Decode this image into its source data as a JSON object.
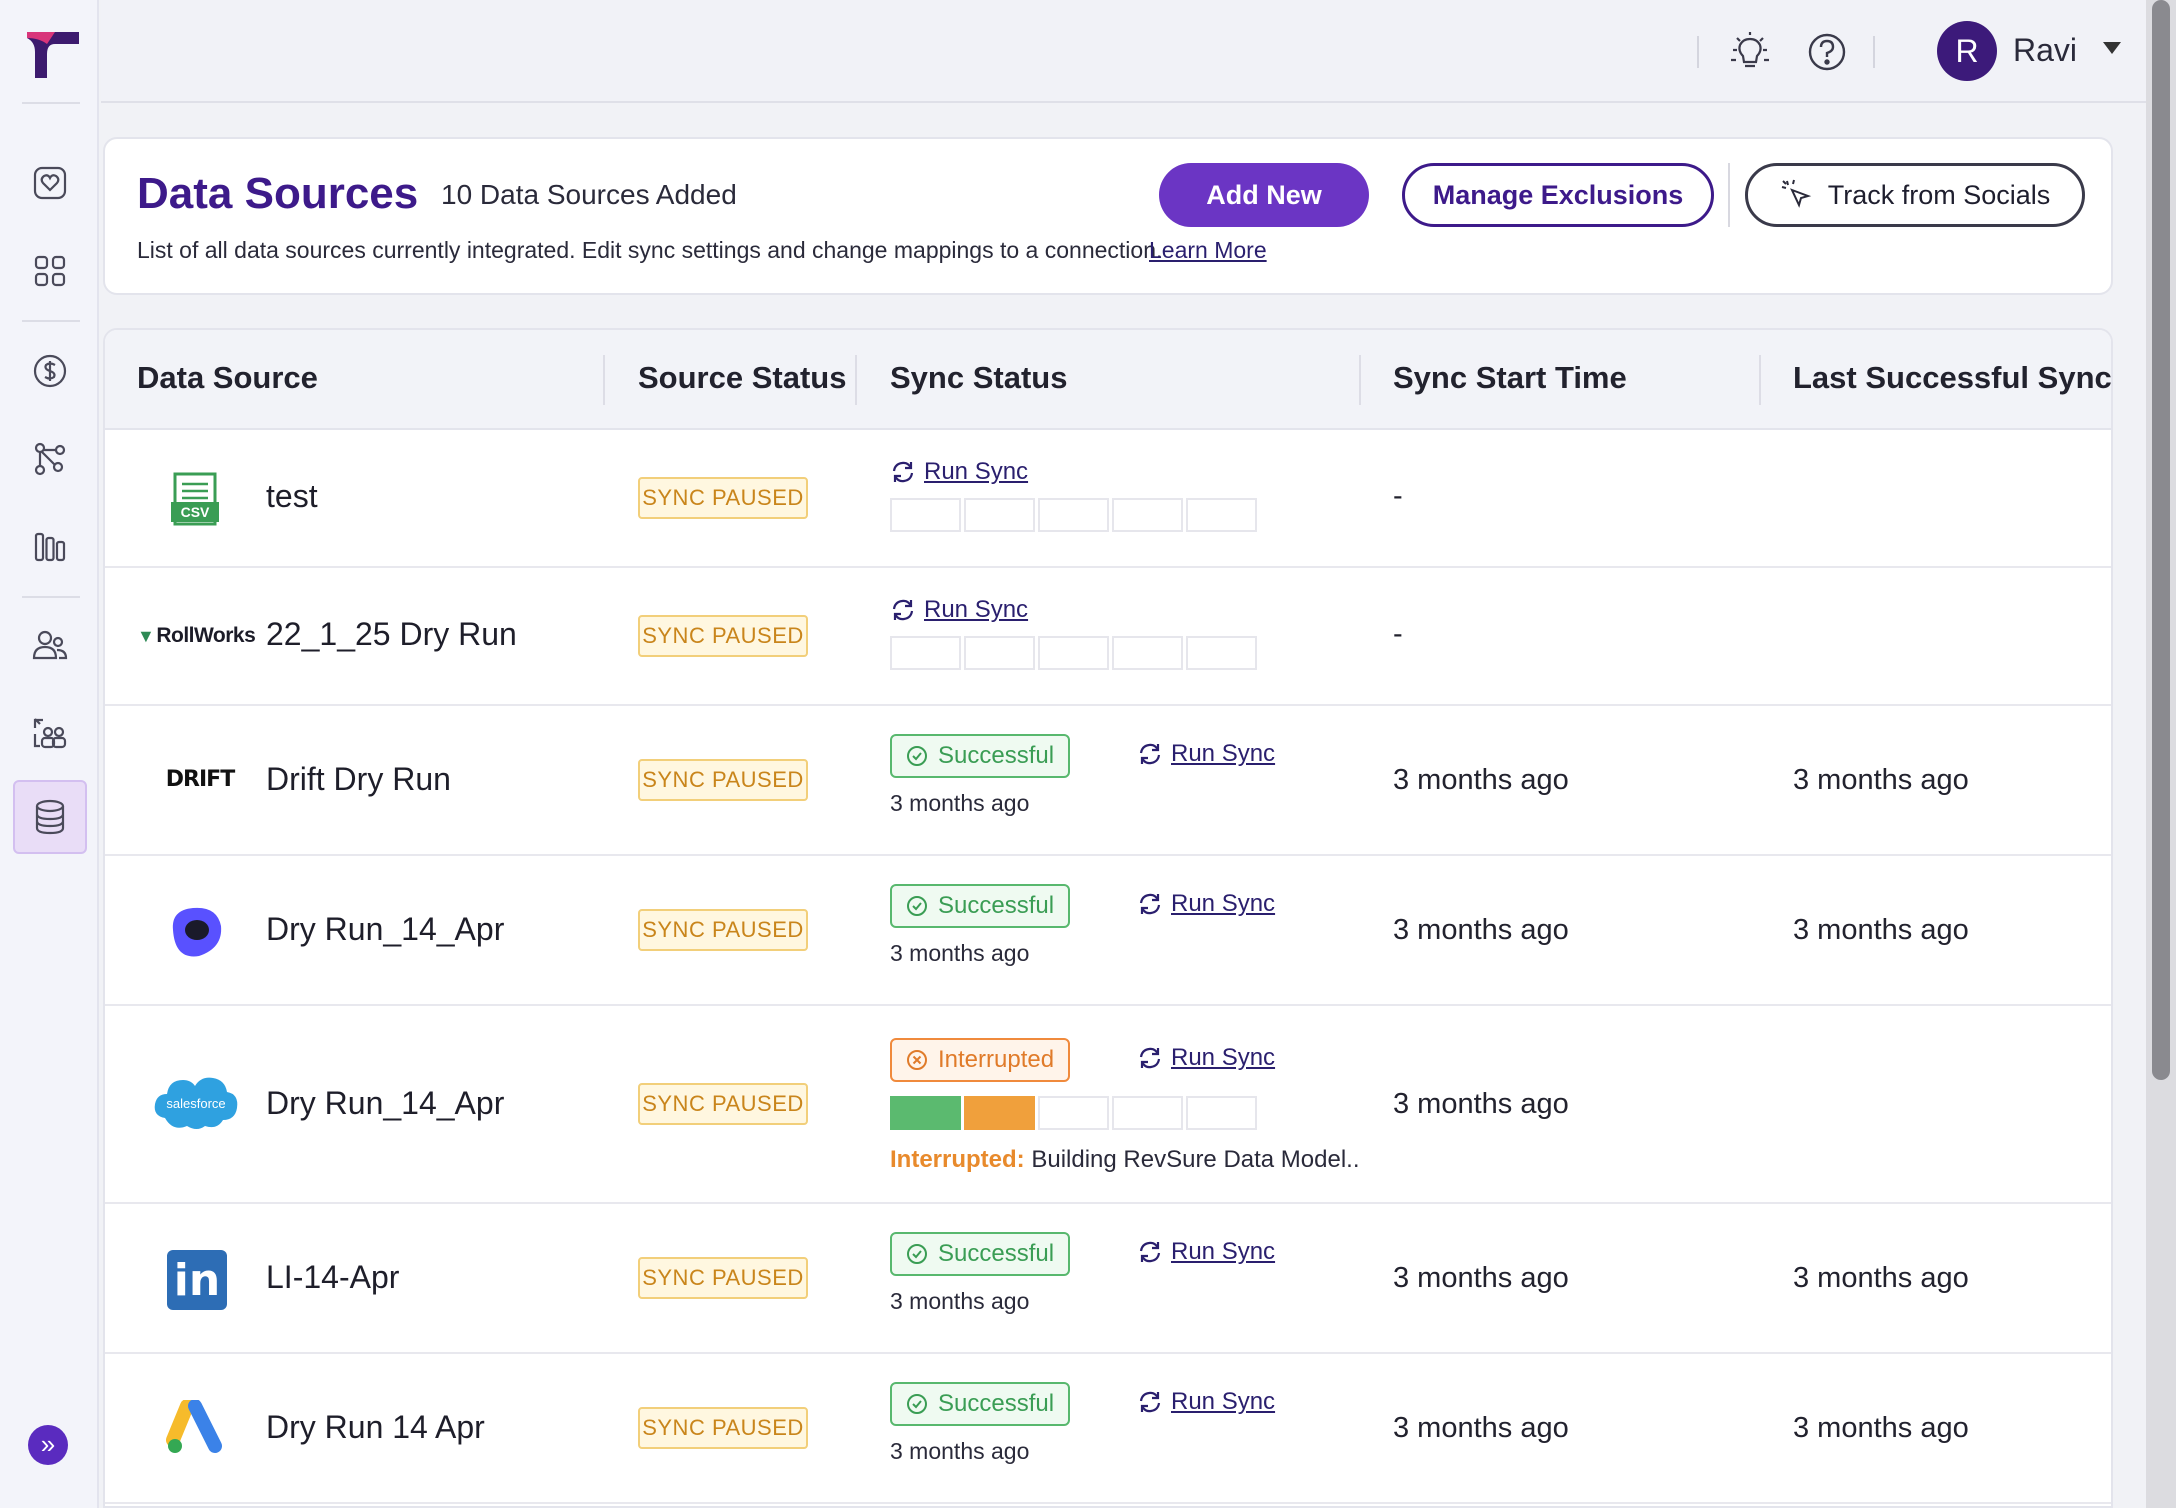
{
  "sidebar": {
    "items": [
      {
        "name": "heart-icon"
      },
      {
        "name": "grid-icon"
      },
      {
        "name": "dollar-icon"
      },
      {
        "name": "flow-icon"
      },
      {
        "name": "bars-icon"
      },
      {
        "name": "users-icon"
      },
      {
        "name": "people-upload-icon"
      },
      {
        "name": "database-icon",
        "active": true
      }
    ],
    "expand_label": "»"
  },
  "topbar": {
    "user_initial": "R",
    "user_name": "Ravi"
  },
  "header": {
    "title": "Data Sources",
    "count": "10 Data Sources Added",
    "description": "List of all data sources currently integrated. Edit sync settings and change mappings to a connection.",
    "learn_more": "Learn More",
    "add_new": "Add New",
    "manage_exclusions": "Manage Exclusions",
    "track_socials": "Track from Socials"
  },
  "table": {
    "columns": [
      "Data Source",
      "Source Status",
      "Sync Status",
      "Sync Start Time",
      "Last Successful Sync Sta"
    ],
    "run_sync_label": "Run Sync",
    "rows": [
      {
        "logo": "csv",
        "name": "test",
        "source_status": "SYNC PAUSED",
        "sync_status": "none",
        "sync_start": "-",
        "last_success": ""
      },
      {
        "logo": "rollworks",
        "logo_text": "RollWorks",
        "name": "22_1_25 Dry Run",
        "source_status": "SYNC PAUSED",
        "sync_status": "none",
        "sync_start": "-",
        "last_success": ""
      },
      {
        "logo": "drift",
        "logo_text": "DRIFT",
        "name": "Drift Dry Run",
        "source_status": "SYNC PAUSED",
        "sync_status": "Successful",
        "sync_time": "3 months ago",
        "sync_start": "3 months ago",
        "last_success": "3 months ago"
      },
      {
        "logo": "outreach",
        "name": "Dry Run_14_Apr",
        "source_status": "SYNC PAUSED",
        "sync_status": "Successful",
        "sync_time": "3 months ago",
        "sync_start": "3 months ago",
        "last_success": "3 months ago"
      },
      {
        "logo": "salesforce",
        "logo_text": "salesforce",
        "name": "Dry Run_14_Apr",
        "source_status": "SYNC PAUSED",
        "sync_status": "Interrupted",
        "error_label": "Interrupted:",
        "error_text": " Building RevSure Data Model..",
        "sync_start": "3 months ago",
        "last_success": ""
      },
      {
        "logo": "linkedin",
        "logo_text": "in",
        "name": "LI-14-Apr",
        "source_status": "SYNC PAUSED",
        "sync_status": "Successful",
        "sync_time": "3 months ago",
        "sync_start": "3 months ago",
        "last_success": "3 months ago"
      },
      {
        "logo": "google-ads",
        "name": "Dry Run 14 Apr",
        "source_status": "SYNC PAUSED",
        "sync_status": "Successful",
        "sync_time": "3 months ago",
        "sync_start": "3 months ago",
        "last_success": "3 months ago"
      }
    ]
  },
  "colors": {
    "brand": "#3d1a8a",
    "primary_button": "#6b35c4",
    "success": "#3a9d54",
    "warning": "#e07b2a",
    "paused": "#c9851b",
    "progress_green": "#5bba6f",
    "progress_orange": "#f0a03c"
  }
}
